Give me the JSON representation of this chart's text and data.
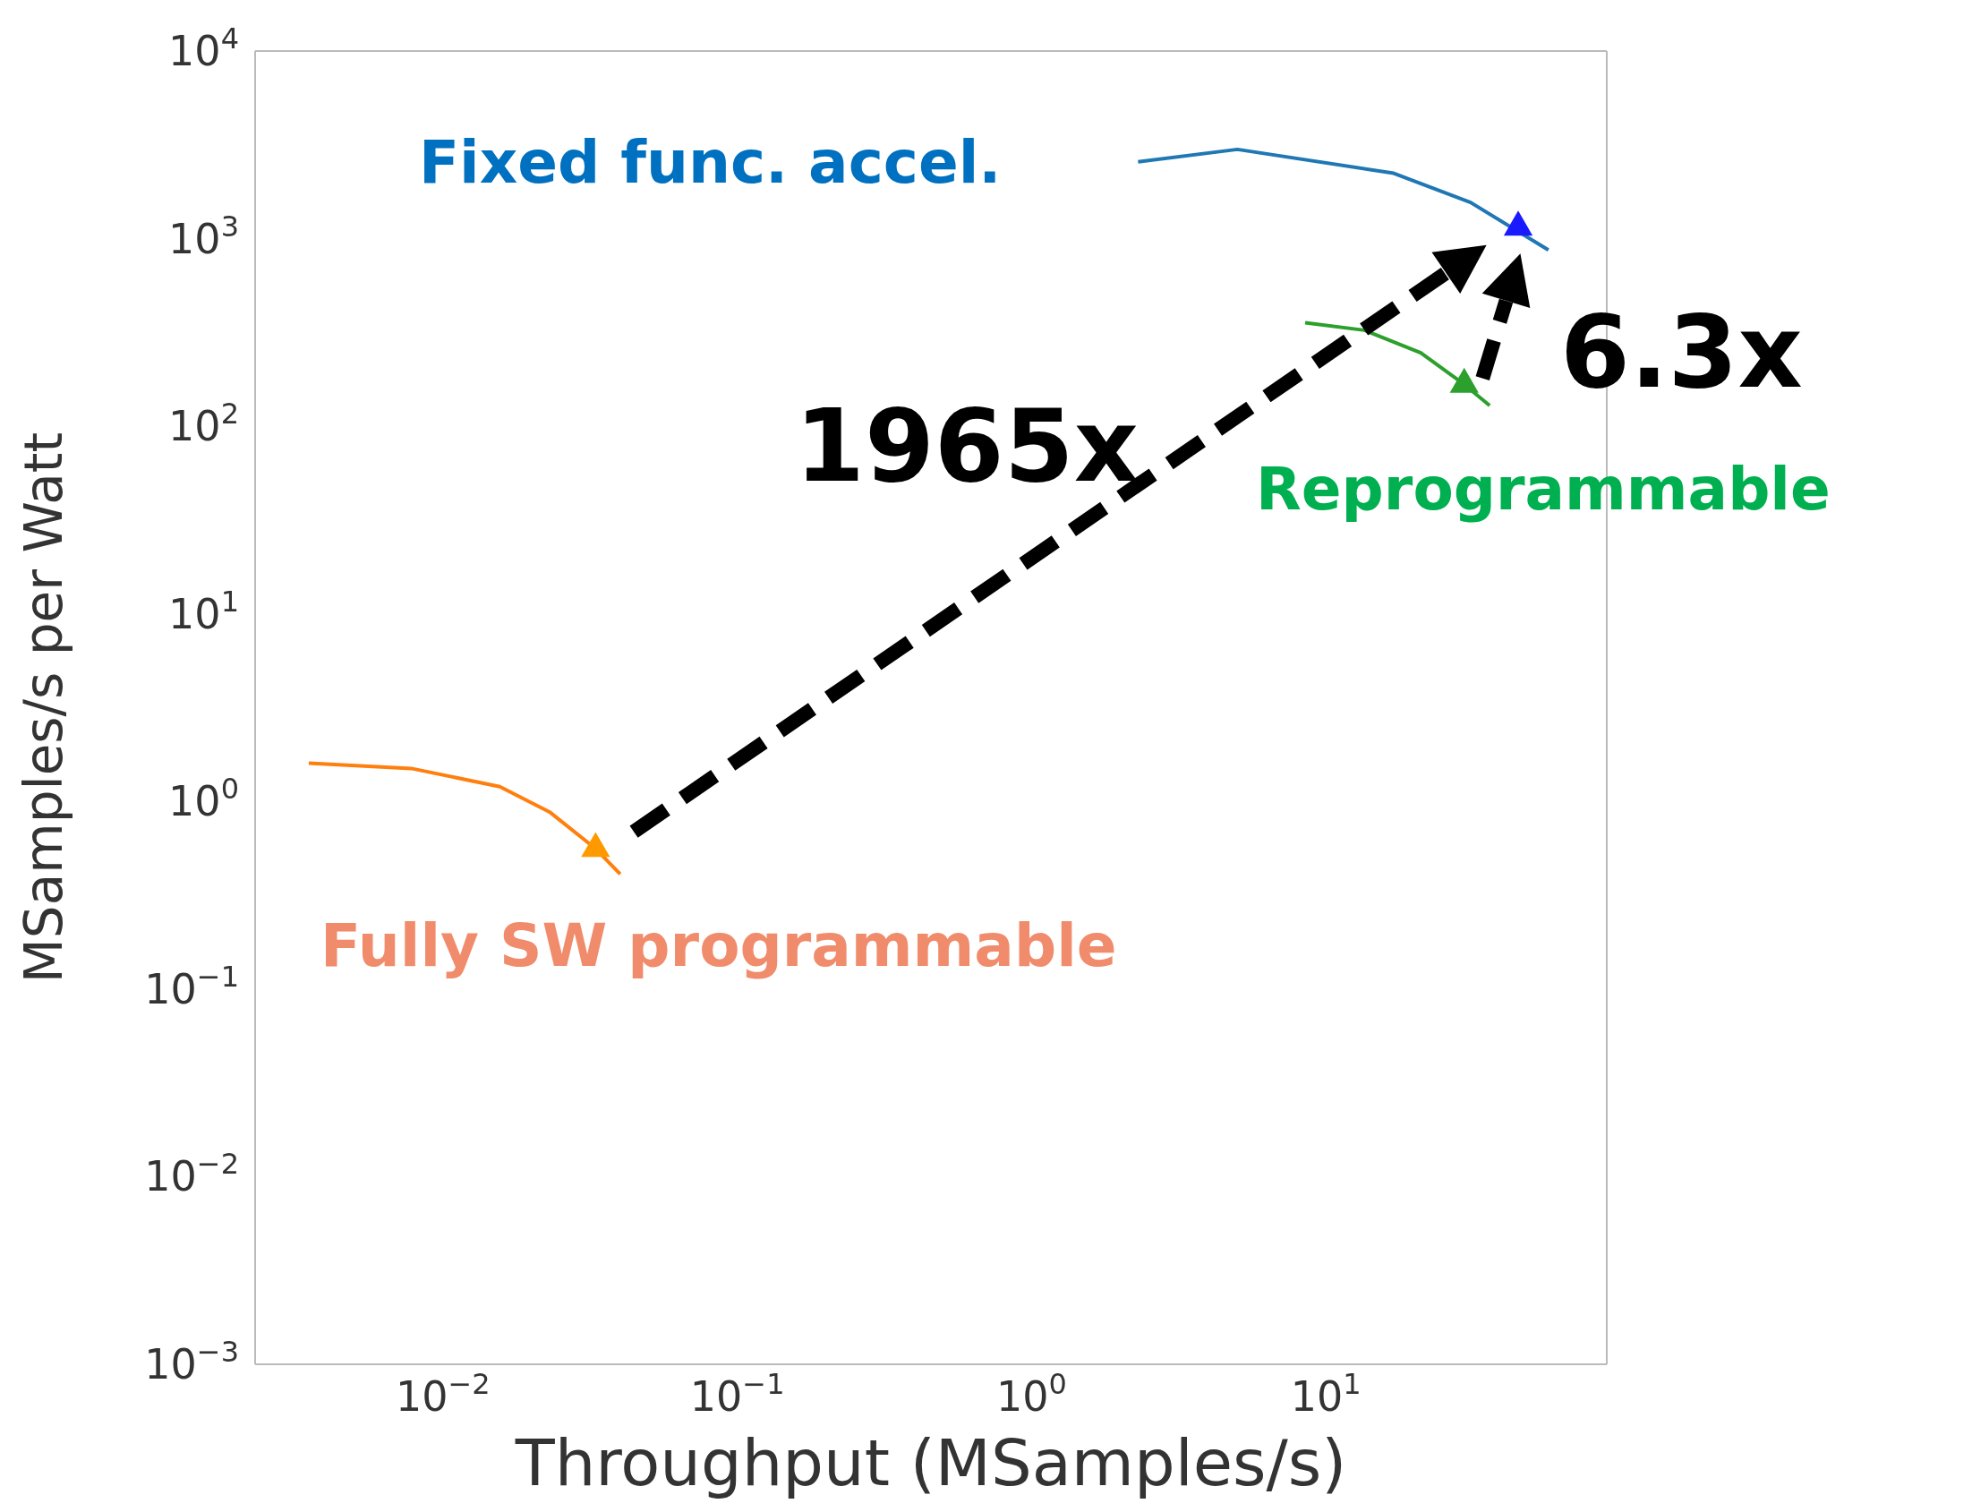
{
  "chart_data": {
    "type": "line",
    "xlabel": "Throughput (MSamples/s)",
    "ylabel": "MSamples/s per Watt",
    "log": "xy",
    "marker": "none",
    "line_style": "solid",
    "xlim": [
      0.0023,
      90
    ],
    "xticks": [
      {
        "value": 0.01,
        "label": "10$^{−2}$"
      },
      {
        "value": 0.1,
        "label": "10$^{−1}$"
      },
      {
        "value": 1,
        "label": "10$^{0}$"
      },
      {
        "value": 10,
        "label": "10$^{1}$"
      }
    ],
    "ylim": [
      0.001,
      10000
    ],
    "yticks": [
      {
        "value": 0.001,
        "label": "10$^{−3}$"
      },
      {
        "value": 0.01,
        "label": "10$^{−2}$"
      },
      {
        "value": 0.1,
        "label": "10$^{−1}$"
      },
      {
        "value": 1,
        "label": "10$^{0}$"
      },
      {
        "value": 10,
        "label": "10$^{1}$"
      },
      {
        "value": 100,
        "label": "10$^{2}$"
      },
      {
        "value": 1000,
        "label": "10$^{3}$"
      },
      {
        "value": 10000,
        "label": "10$^{4}$"
      }
    ],
    "series": [
      {
        "name": "Fully SW programmable",
        "color": "#ff7f0e",
        "x": [
          0.0035,
          0.0078,
          0.0156,
          0.023,
          0.033,
          0.04
        ],
        "values": [
          1.6,
          1.5,
          1.2,
          0.88,
          0.56,
          0.41
        ]
      },
      {
        "name": "Fixed func. accel.",
        "color": "#1f77b4",
        "x": [
          2.3,
          5,
          17,
          31,
          57
        ],
        "values": [
          2570,
          2990,
          2230,
          1560,
          870
        ]
      },
      {
        "name": "Reprogrammable",
        "color": "#2ca02c",
        "x": [
          8.5,
          13.5,
          21,
          29.5,
          36
        ],
        "values": [
          356,
          325,
          246,
          167,
          129
        ]
      },
      {
        "type": "scatter",
        "marker": "triangle",
        "color": "#ff9900",
        "x": [
          0.033
        ],
        "values": [
          0.56
        ]
      },
      {
        "type": "scatter",
        "marker": "triangle",
        "color": "#1a1aff",
        "x": [
          45
        ],
        "values": [
          1150
        ]
      },
      {
        "type": "scatter",
        "marker": "triangle",
        "color": "#2ca02c",
        "x": [
          29.5
        ],
        "values": [
          167
        ]
      }
    ],
    "annotations": [
      "1965x",
      "6.3x"
    ]
  }
}
